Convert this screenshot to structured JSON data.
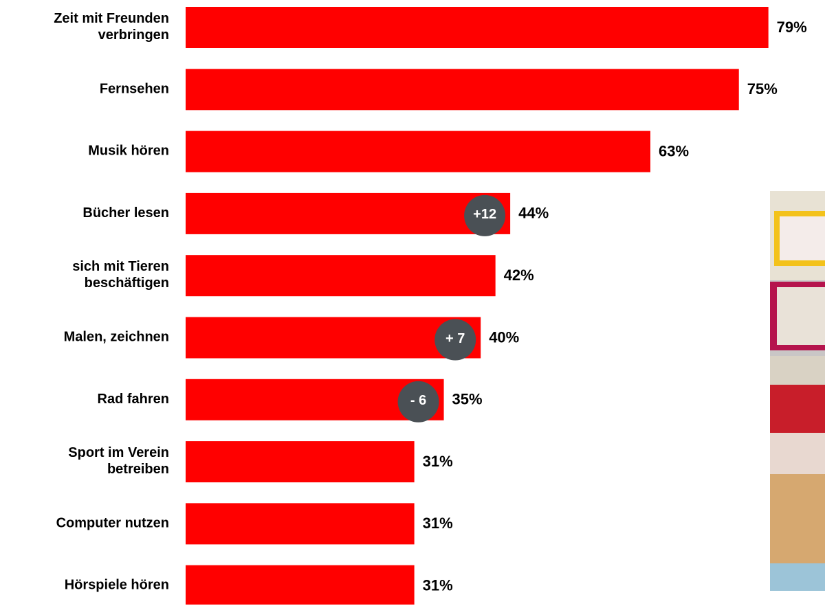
{
  "chart_data": {
    "type": "bar",
    "orientation": "horizontal",
    "color": "#ff0000",
    "categories": [
      "Zeit mit Freunden\nverbringen",
      "Fernsehen",
      "Musik hören",
      "Bücher lesen",
      "sich mit Tieren\nbeschäftigen",
      "Malen, zeichnen",
      "Rad fahren",
      "Sport im Verein\nbetreiben",
      "Computer nutzen",
      "Hörspiele hören"
    ],
    "values": [
      79,
      75,
      63,
      44,
      42,
      40,
      35,
      31,
      31,
      31
    ],
    "value_labels": [
      "79%",
      "75%",
      "63%",
      "44%",
      "42%",
      "40%",
      "35%",
      "31%",
      "31%",
      "31%"
    ],
    "changes": [
      null,
      null,
      null,
      {
        "value": 12,
        "label": "+12"
      },
      null,
      {
        "value": 7,
        "label": "+ 7"
      },
      {
        "value": -6,
        "label": "- 6"
      },
      null,
      null,
      null
    ],
    "change_color": "#4a5055"
  }
}
